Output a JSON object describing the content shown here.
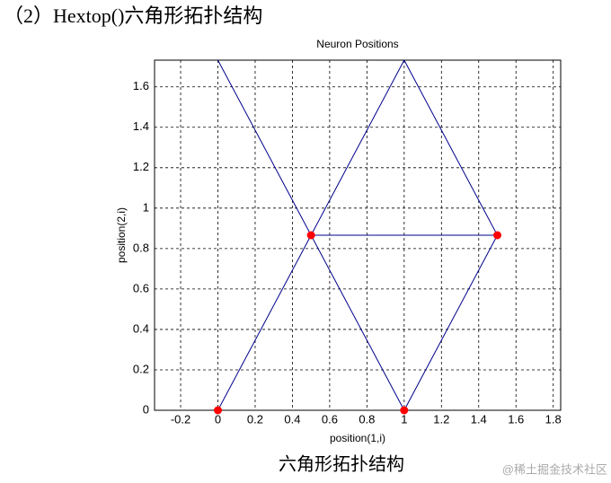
{
  "heading": "（2）Hextop()六角形拓扑结构",
  "caption": "六角形拓扑结构",
  "watermark": "@稀土掘金技术社区",
  "chart_data": {
    "type": "scatter",
    "title": "Neuron Positions",
    "x_label": "position(1,i)",
    "y_label": "position(2,i)",
    "x": [
      0,
      1,
      0.5,
      1.5
    ],
    "y": [
      0,
      0,
      0.866,
      0.866
    ],
    "color": "#ff0000",
    "lines": [
      {
        "x": [
          0,
          1
        ],
        "y": [
          1.732,
          0
        ]
      },
      {
        "x": [
          0,
          1
        ],
        "y": [
          0,
          1.732
        ]
      },
      {
        "x": [
          1,
          1.5,
          1
        ],
        "y": [
          1.732,
          0.866,
          0
        ]
      },
      {
        "x": [
          0.5,
          1.5
        ],
        "y": [
          0.866,
          0.866
        ]
      }
    ],
    "line_color": "#00008b",
    "xlim": [
      -0.34,
      1.84
    ],
    "ylim": [
      0,
      1.732
    ],
    "xticks": [
      -0.2,
      0,
      0.2,
      0.4,
      0.6,
      0.8,
      1,
      1.2,
      1.4,
      1.6,
      1.8
    ],
    "yticks": [
      0,
      0.2,
      0.4,
      0.6,
      0.8,
      1,
      1.2,
      1.4,
      1.6
    ],
    "grid": true
  }
}
